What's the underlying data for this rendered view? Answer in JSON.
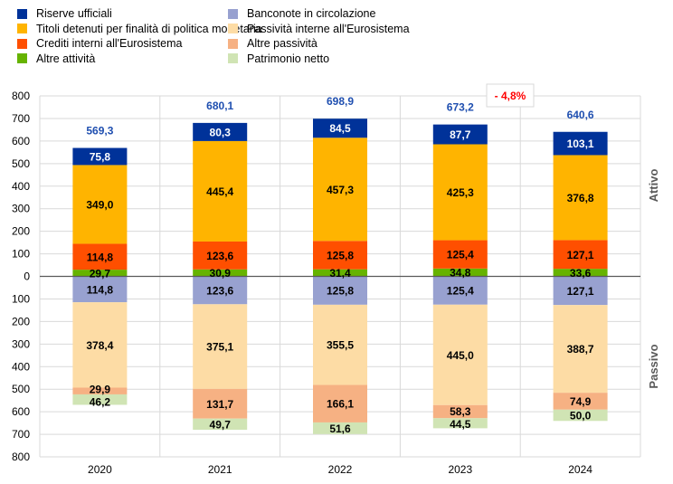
{
  "chart_data": {
    "type": "bar",
    "stacked": true,
    "categories": [
      "2020",
      "2021",
      "2022",
      "2023",
      "2024"
    ],
    "ylim": [
      -800,
      800
    ],
    "yticks": [
      800,
      700,
      600,
      500,
      400,
      300,
      200,
      100,
      0,
      100,
      200,
      300,
      400,
      500,
      600,
      700,
      800
    ],
    "side_labels": {
      "top": "Attivo",
      "bottom": "Passivo"
    },
    "assets": [
      {
        "name": "Altre attività",
        "color": "#66b300",
        "values": [
          29.7,
          30.9,
          31.4,
          34.8,
          33.6
        ],
        "labels": [
          "29,7",
          "30,9",
          "31,4",
          "34,8",
          "33,6"
        ]
      },
      {
        "name": "Crediti interni all'Eurosistema",
        "color": "#ff4f00",
        "values": [
          114.8,
          123.6,
          125.8,
          125.4,
          127.1
        ],
        "labels": [
          "114,8",
          "123,6",
          "125,8",
          "125,4",
          "127,1"
        ]
      },
      {
        "name": "Titoli detenuti per finalità di politica monetaria",
        "color": "#ffb400",
        "values": [
          349.0,
          445.4,
          457.3,
          425.3,
          376.8
        ],
        "labels": [
          "349,0",
          "445,4",
          "457,3",
          "425,3",
          "376,8"
        ]
      },
      {
        "name": "Riserve ufficiali",
        "color": "#003299",
        "values": [
          75.8,
          80.3,
          84.5,
          87.7,
          103.1
        ],
        "labels": [
          "75,8",
          "80,3",
          "84,5",
          "87,7",
          "103,1"
        ]
      }
    ],
    "liabilities": [
      {
        "name": "Banconote in circolazione",
        "color": "#98a1d0",
        "values": [
          114.8,
          123.6,
          125.8,
          125.4,
          127.1
        ],
        "labels": [
          "114,8",
          "123,6",
          "125,8",
          "125,4",
          "127,1"
        ]
      },
      {
        "name": "Passività interne all'Eurosistema",
        "color": "#fddca5",
        "values": [
          378.4,
          375.1,
          355.5,
          445.0,
          388.7
        ],
        "labels": [
          "378,4",
          "375,1",
          "355,5",
          "445,0",
          "388,7"
        ]
      },
      {
        "name": "Altre passività",
        "color": "#f6b183",
        "values": [
          29.9,
          131.7,
          166.1,
          58.3,
          74.9
        ],
        "labels": [
          "29,9",
          "131,7",
          "166,1",
          "58,3",
          "74,9"
        ]
      },
      {
        "name": "Patrimonio netto",
        "color": "#d0e4b4",
        "values": [
          46.2,
          49.7,
          51.6,
          44.5,
          50.0
        ],
        "labels": [
          "46,2",
          "49,7",
          "51,6",
          "44,5",
          "50,0"
        ]
      }
    ],
    "totals": [
      569.3,
      680.1,
      698.9,
      673.2,
      640.6
    ],
    "total_labels": [
      "569,3",
      "680,1",
      "698,9",
      "673,2",
      "640,6"
    ],
    "annotation": "- 4,8%"
  },
  "legend": [
    {
      "label": "Riserve ufficiali",
      "color": "#003299"
    },
    {
      "label": "Titoli detenuti per finalità di politica monetaria",
      "color": "#ffb400"
    },
    {
      "label": "Crediti interni all'Eurosistema",
      "color": "#ff4f00"
    },
    {
      "label": "Altre attività",
      "color": "#66b300"
    },
    {
      "label": "Banconote in circolazione",
      "color": "#98a1d0"
    },
    {
      "label": "Passività interne all'Eurosistema",
      "color": "#fddca5"
    },
    {
      "label": "Altre passività",
      "color": "#f6b183"
    },
    {
      "label": "Patrimonio netto",
      "color": "#d0e4b4"
    }
  ]
}
